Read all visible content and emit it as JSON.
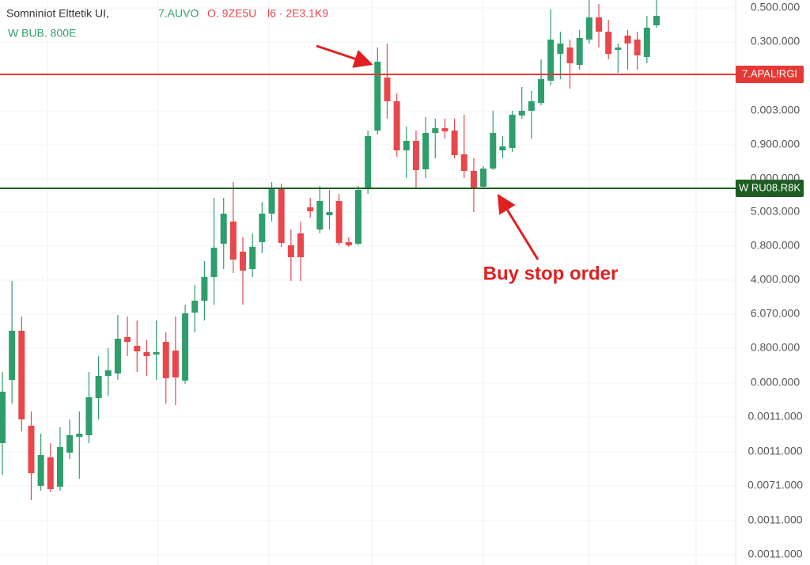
{
  "chart_data": {
    "type": "candlestick",
    "title": "Somniniot Elttetik UI,",
    "header_values": [
      "7.AUVO",
      "O. 9ZE5U",
      "l6 · 2E3.1K9"
    ],
    "header_colors": [
      "#2e9e6b",
      "#e8474c",
      "#e8474c"
    ],
    "subtitle": "W BUB. 800E",
    "up_color": "#2e9e6b",
    "down_color": "#e8474c",
    "ylim": [
      0,
      714
    ],
    "yticks": [
      {
        "value": 704,
        "label": "0.500.000"
      },
      {
        "value": 661,
        "label": "0.300.000"
      },
      {
        "value": 574,
        "label": "0.003.000"
      },
      {
        "value": 531,
        "label": "0.900.000"
      },
      {
        "value": 488,
        "label": "0.000.000"
      },
      {
        "value": 446,
        "label": "5.003.000"
      },
      {
        "value": 403,
        "label": "0.800.000"
      },
      {
        "value": 360,
        "label": "4.000.000"
      },
      {
        "value": 317,
        "label": "6.070.000"
      },
      {
        "value": 274,
        "label": "0.800.000"
      },
      {
        "value": 230,
        "label": "0.000.000"
      },
      {
        "value": 187,
        "label": "0.0011.000"
      },
      {
        "value": 143,
        "label": "0.0011.000"
      },
      {
        "value": 100,
        "label": "0.0071.000"
      },
      {
        "value": 56,
        "label": "0.0011.000"
      },
      {
        "value": 13,
        "label": "0.0011.000"
      }
    ],
    "grid": true,
    "open": [
      154,
      234,
      296,
      176,
      100,
      136,
      99,
      142,
      162,
      164,
      211,
      239,
      242,
      288,
      277,
      269,
      266,
      282,
      271,
      233,
      319,
      334,
      364,
      406,
      434,
      396,
      374,
      408,
      444,
      476,
      404,
      419,
      452,
      424,
      442,
      460,
      408,
      406,
      476,
      549,
      616,
      586,
      524,
      536,
      500,
      546,
      552,
      549,
      519,
      498,
      478,
      501,
      524,
      527,
      568,
      574,
      584,
      612,
      646,
      654,
      632,
      664,
      692,
      674,
      651,
      669,
      664,
      642,
      682
    ],
    "high": [
      244,
      359,
      314,
      194,
      166,
      154,
      174,
      184,
      194,
      244,
      264,
      274,
      316,
      314,
      309,
      284,
      309,
      294,
      314,
      329,
      354,
      384,
      464,
      464,
      484,
      414,
      419,
      459,
      484,
      482,
      424,
      434,
      464,
      479,
      474,
      469,
      414,
      479,
      549,
      654,
      659,
      596,
      554,
      549,
      566,
      564,
      564,
      564,
      569,
      514,
      504,
      574,
      542,
      574,
      604,
      599,
      639,
      702,
      674,
      664,
      676,
      714,
      709,
      689,
      659,
      676,
      674,
      694,
      714
    ],
    "low": [
      114,
      204,
      169,
      82,
      94,
      92,
      94,
      134,
      109,
      154,
      184,
      214,
      234,
      264,
      244,
      239,
      234,
      204,
      202,
      229,
      294,
      309,
      329,
      374,
      369,
      329,
      364,
      394,
      434,
      402,
      359,
      359,
      439,
      419,
      424,
      404,
      402,
      404,
      469,
      544,
      564,
      516,
      489,
      476,
      489,
      514,
      539,
      514,
      489,
      446,
      476,
      499,
      514,
      522,
      564,
      539,
      581,
      606,
      614,
      602,
      626,
      659,
      654,
      639,
      622,
      626,
      626,
      634,
      679
    ],
    "close": [
      219,
      296,
      184,
      116,
      139,
      96,
      149,
      164,
      166,
      212,
      239,
      246,
      286,
      282,
      270,
      264,
      269,
      236,
      237,
      318,
      334,
      364,
      401,
      444,
      386,
      372,
      402,
      444,
      476,
      407,
      389,
      389,
      447,
      460,
      446,
      407,
      404,
      474,
      542,
      636,
      586,
      524,
      536,
      499,
      546,
      552,
      548,
      518,
      498,
      476,
      501,
      546,
      529,
      569,
      574,
      586,
      614,
      664,
      659,
      634,
      666,
      692,
      674,
      646,
      654,
      659,
      644,
      679,
      694
    ],
    "levels": [
      {
        "value": 620,
        "label": "7.APAL!RGI",
        "color": "#e53935"
      },
      {
        "value": 476,
        "label": "W RU08.R8K",
        "color": "#1b5e20"
      }
    ],
    "annotation": {
      "text": "Buy stop order",
      "color": "#e02020"
    }
  }
}
